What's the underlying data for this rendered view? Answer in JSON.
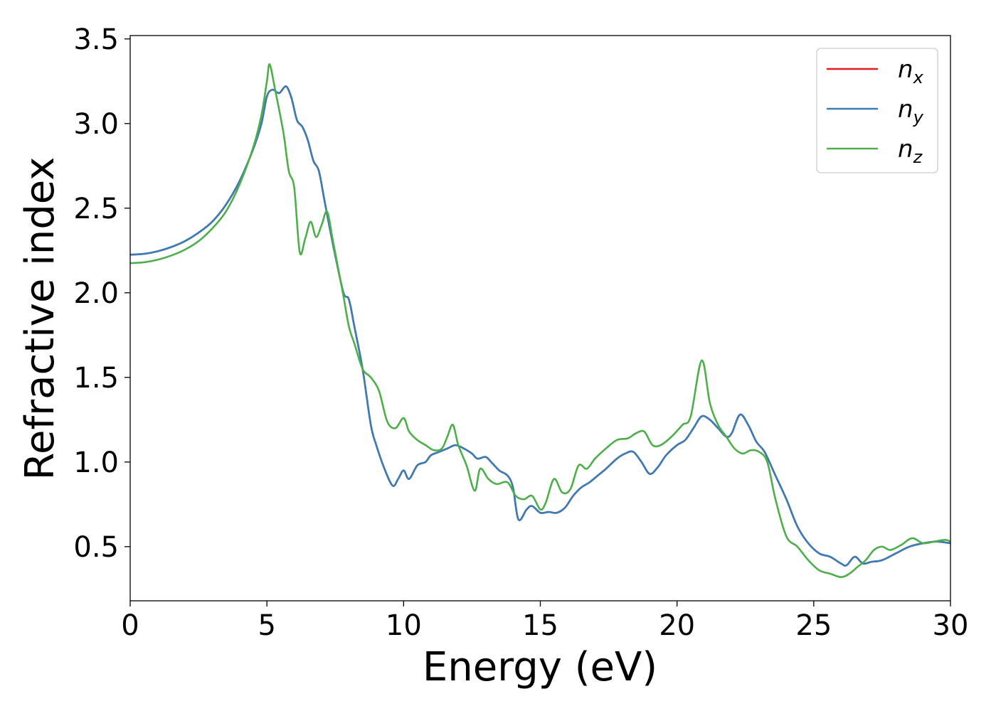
{
  "chart_data": {
    "type": "line",
    "title": "",
    "xlabel": "Energy (eV)",
    "ylabel": "Refractive index",
    "xlim": [
      0,
      30
    ],
    "ylim": [
      0.18,
      3.52
    ],
    "xticks": [
      0,
      5,
      10,
      15,
      20,
      25,
      30
    ],
    "xtick_labels": [
      "0",
      "5",
      "10",
      "15",
      "20",
      "25",
      "30"
    ],
    "yticks": [
      0.5,
      1.0,
      1.5,
      2.0,
      2.5,
      3.0,
      3.5
    ],
    "ytick_labels": [
      "0.5",
      "1.0",
      "1.5",
      "2.0",
      "2.5",
      "3.0",
      "3.5"
    ],
    "grid": false,
    "legend": {
      "placement": "top-right",
      "entries": [
        {
          "base": "n",
          "sub": "x",
          "color": "#e41a1c"
        },
        {
          "base": "n",
          "sub": "y",
          "color": "#377eb8"
        },
        {
          "base": "n",
          "sub": "z",
          "color": "#4daf4a"
        }
      ]
    },
    "series": [
      {
        "name": "n_x",
        "color": "#e41a1c",
        "x": [
          0,
          0.5,
          1,
          1.5,
          2,
          2.5,
          3,
          3.5,
          4,
          4.5,
          4.8,
          5.0,
          5.2,
          5.45,
          5.7,
          5.9,
          6.1,
          6.3,
          6.5,
          6.7,
          6.9,
          7.1,
          7.3,
          7.5,
          7.8,
          8.0,
          8.2,
          8.5,
          8.8,
          9.0,
          9.3,
          9.6,
          9.8,
          10.0,
          10.2,
          10.5,
          10.8,
          11.0,
          11.3,
          11.6,
          11.9,
          12.2,
          12.5,
          12.7,
          13.0,
          13.2,
          13.5,
          13.8,
          14.0,
          14.2,
          14.5,
          14.7,
          15.0,
          15.3,
          15.6,
          15.9,
          16.2,
          16.5,
          16.8,
          17.1,
          17.4,
          17.8,
          18.1,
          18.4,
          18.7,
          19.0,
          19.3,
          19.6,
          20.0,
          20.3,
          20.6,
          20.9,
          21.2,
          21.5,
          21.8,
          22.0,
          22.3,
          22.6,
          22.9,
          23.2,
          23.6,
          24.0,
          24.4,
          24.8,
          25.2,
          25.6,
          26.0,
          26.2,
          26.5,
          26.8,
          27.1,
          27.5,
          28.0,
          28.5,
          29.0,
          29.5,
          30.0
        ],
        "y": [
          2.225,
          2.23,
          2.245,
          2.27,
          2.305,
          2.355,
          2.42,
          2.52,
          2.66,
          2.85,
          3.0,
          3.16,
          3.2,
          3.18,
          3.22,
          3.15,
          3.02,
          2.98,
          2.9,
          2.78,
          2.72,
          2.55,
          2.38,
          2.22,
          2.0,
          1.96,
          1.8,
          1.55,
          1.22,
          1.1,
          0.96,
          0.86,
          0.9,
          0.95,
          0.9,
          0.98,
          1.0,
          1.04,
          1.06,
          1.08,
          1.1,
          1.08,
          1.05,
          1.02,
          1.03,
          1.0,
          0.95,
          0.92,
          0.85,
          0.66,
          0.72,
          0.74,
          0.7,
          0.705,
          0.7,
          0.73,
          0.8,
          0.85,
          0.88,
          0.92,
          0.96,
          1.02,
          1.05,
          1.06,
          1.0,
          0.93,
          0.97,
          1.04,
          1.1,
          1.13,
          1.2,
          1.27,
          1.25,
          1.2,
          1.15,
          1.17,
          1.28,
          1.22,
          1.12,
          1.06,
          0.92,
          0.78,
          0.62,
          0.52,
          0.46,
          0.44,
          0.4,
          0.39,
          0.44,
          0.4,
          0.41,
          0.42,
          0.46,
          0.5,
          0.52,
          0.53,
          0.52
        ]
      },
      {
        "name": "n_y",
        "color": "#377eb8",
        "x": [
          0,
          0.5,
          1,
          1.5,
          2,
          2.5,
          3,
          3.5,
          4,
          4.5,
          4.8,
          5.0,
          5.2,
          5.45,
          5.7,
          5.9,
          6.1,
          6.3,
          6.5,
          6.7,
          6.9,
          7.1,
          7.3,
          7.5,
          7.8,
          8.0,
          8.2,
          8.5,
          8.8,
          9.0,
          9.3,
          9.6,
          9.8,
          10.0,
          10.2,
          10.5,
          10.8,
          11.0,
          11.3,
          11.6,
          11.9,
          12.2,
          12.5,
          12.7,
          13.0,
          13.2,
          13.5,
          13.8,
          14.0,
          14.2,
          14.5,
          14.7,
          15.0,
          15.3,
          15.6,
          15.9,
          16.2,
          16.5,
          16.8,
          17.1,
          17.4,
          17.8,
          18.1,
          18.4,
          18.7,
          19.0,
          19.3,
          19.6,
          20.0,
          20.3,
          20.6,
          20.9,
          21.2,
          21.5,
          21.8,
          22.0,
          22.3,
          22.6,
          22.9,
          23.2,
          23.6,
          24.0,
          24.4,
          24.8,
          25.2,
          25.6,
          26.0,
          26.2,
          26.5,
          26.8,
          27.1,
          27.5,
          28.0,
          28.5,
          29.0,
          29.5,
          30.0
        ],
        "y": [
          2.225,
          2.23,
          2.245,
          2.27,
          2.305,
          2.355,
          2.42,
          2.52,
          2.66,
          2.85,
          3.0,
          3.16,
          3.2,
          3.18,
          3.22,
          3.15,
          3.02,
          2.98,
          2.9,
          2.78,
          2.72,
          2.55,
          2.38,
          2.22,
          2.0,
          1.96,
          1.8,
          1.55,
          1.22,
          1.1,
          0.96,
          0.86,
          0.9,
          0.95,
          0.9,
          0.98,
          1.0,
          1.04,
          1.06,
          1.08,
          1.1,
          1.08,
          1.05,
          1.02,
          1.03,
          1.0,
          0.95,
          0.92,
          0.85,
          0.66,
          0.72,
          0.74,
          0.7,
          0.705,
          0.7,
          0.73,
          0.8,
          0.85,
          0.88,
          0.92,
          0.96,
          1.02,
          1.05,
          1.06,
          1.0,
          0.93,
          0.97,
          1.04,
          1.1,
          1.13,
          1.2,
          1.27,
          1.25,
          1.2,
          1.15,
          1.17,
          1.28,
          1.22,
          1.12,
          1.06,
          0.92,
          0.78,
          0.62,
          0.52,
          0.46,
          0.44,
          0.4,
          0.39,
          0.44,
          0.4,
          0.41,
          0.42,
          0.46,
          0.5,
          0.52,
          0.53,
          0.52
        ]
      },
      {
        "name": "n_z",
        "color": "#4daf4a",
        "x": [
          0,
          0.5,
          1,
          1.5,
          2,
          2.5,
          3,
          3.5,
          4,
          4.5,
          4.8,
          5.0,
          5.1,
          5.3,
          5.6,
          5.8,
          6.0,
          6.2,
          6.4,
          6.6,
          6.8,
          7.0,
          7.2,
          7.4,
          7.6,
          7.8,
          8.0,
          8.2,
          8.5,
          8.8,
          9.1,
          9.4,
          9.7,
          10.0,
          10.2,
          10.5,
          10.8,
          11.1,
          11.4,
          11.6,
          11.8,
          12.0,
          12.3,
          12.6,
          12.8,
          13.1,
          13.4,
          13.8,
          14.1,
          14.4,
          14.7,
          15.0,
          15.2,
          15.5,
          15.8,
          16.1,
          16.4,
          16.7,
          17.0,
          17.4,
          17.8,
          18.2,
          18.5,
          18.8,
          19.1,
          19.4,
          19.8,
          20.2,
          20.5,
          20.9,
          21.2,
          21.5,
          21.8,
          22.1,
          22.4,
          22.7,
          23.0,
          23.3,
          23.6,
          24.0,
          24.4,
          24.8,
          25.2,
          25.6,
          26.0,
          26.3,
          26.6,
          26.9,
          27.2,
          27.5,
          27.8,
          28.2,
          28.6,
          29.0,
          29.4,
          29.8,
          30.0
        ],
        "y": [
          2.175,
          2.18,
          2.195,
          2.22,
          2.255,
          2.305,
          2.38,
          2.48,
          2.64,
          2.86,
          3.05,
          3.25,
          3.35,
          3.2,
          2.95,
          2.72,
          2.62,
          2.24,
          2.32,
          2.42,
          2.33,
          2.4,
          2.48,
          2.32,
          2.15,
          1.98,
          1.8,
          1.7,
          1.55,
          1.5,
          1.42,
          1.24,
          1.2,
          1.26,
          1.18,
          1.13,
          1.1,
          1.07,
          1.08,
          1.15,
          1.22,
          1.1,
          0.98,
          0.83,
          0.96,
          0.9,
          0.87,
          0.88,
          0.8,
          0.78,
          0.8,
          0.72,
          0.76,
          0.9,
          0.82,
          0.84,
          0.98,
          0.96,
          1.02,
          1.08,
          1.13,
          1.14,
          1.17,
          1.18,
          1.1,
          1.1,
          1.15,
          1.22,
          1.27,
          1.6,
          1.35,
          1.22,
          1.15,
          1.08,
          1.05,
          1.07,
          1.06,
          1.0,
          0.78,
          0.56,
          0.5,
          0.42,
          0.36,
          0.34,
          0.32,
          0.34,
          0.38,
          0.42,
          0.48,
          0.5,
          0.48,
          0.51,
          0.55,
          0.52,
          0.53,
          0.54,
          0.53
        ]
      }
    ]
  }
}
